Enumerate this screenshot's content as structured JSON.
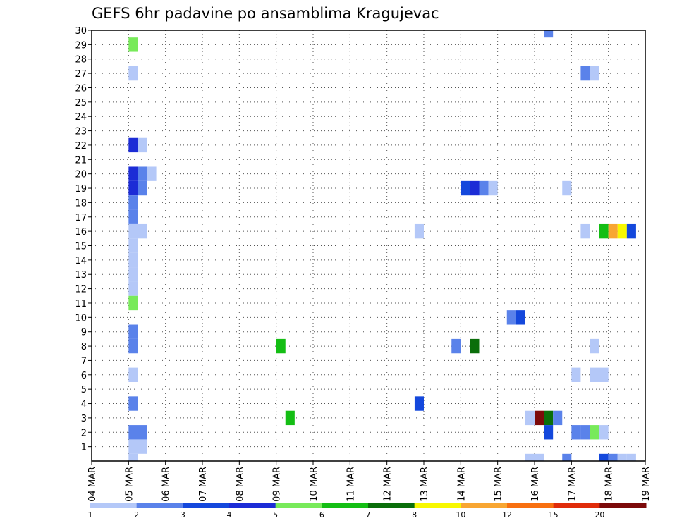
{
  "chart_data": {
    "type": "heatmap",
    "title": "GEFS 6hr padavine po ansamblima Kragujevac",
    "x_labels": [
      "04 MAR",
      "05 MAR",
      "06 MAR",
      "07 MAR",
      "08 MAR",
      "09 MAR",
      "10 MAR",
      "11 MAR",
      "12 MAR",
      "13 MAR",
      "14 MAR",
      "15 MAR",
      "16 MAR",
      "17 MAR",
      "18 MAR",
      "19 MAR"
    ],
    "x_unit": "6-hour steps from 04 MAR 00Z",
    "xlim": [
      0,
      60
    ],
    "y_labels": [
      "1",
      "2",
      "3",
      "4",
      "5",
      "6",
      "7",
      "8",
      "9",
      "10",
      "11",
      "12",
      "13",
      "14",
      "15",
      "16",
      "17",
      "18",
      "19",
      "20",
      "21",
      "22",
      "23",
      "24",
      "25",
      "26",
      "27",
      "28",
      "29",
      "30"
    ],
    "ylim": [
      0,
      30
    ],
    "legend": {
      "labels": [
        "1",
        "2",
        "3",
        "4",
        "5",
        "6",
        "7",
        "8",
        "10",
        "12",
        "15",
        "20"
      ],
      "colors": [
        "#b4c8f8",
        "#5a82ea",
        "#1448dc",
        "#1c2cd6",
        "#78ea5a",
        "#14be14",
        "#0a6e0a",
        "#f8f800",
        "#f8a632",
        "#f87010",
        "#e02c0a",
        "#7c0a0a"
      ]
    },
    "cells": [
      {
        "x": 4,
        "y": 29,
        "v": 5
      },
      {
        "x": 49,
        "y": 30,
        "v": 2
      },
      {
        "x": 4,
        "y": 27,
        "v": 1
      },
      {
        "x": 53,
        "y": 27,
        "v": 2
      },
      {
        "x": 54,
        "y": 27,
        "v": 1
      },
      {
        "x": 4,
        "y": 22,
        "v": 4
      },
      {
        "x": 5,
        "y": 22,
        "v": 1
      },
      {
        "x": 4,
        "y": 20,
        "v": 4
      },
      {
        "x": 5,
        "y": 20,
        "v": 2
      },
      {
        "x": 6,
        "y": 20,
        "v": 1
      },
      {
        "x": 4,
        "y": 19,
        "v": 4
      },
      {
        "x": 5,
        "y": 19,
        "v": 2
      },
      {
        "x": 40,
        "y": 19,
        "v": 3
      },
      {
        "x": 41,
        "y": 19,
        "v": 4
      },
      {
        "x": 42,
        "y": 19,
        "v": 2
      },
      {
        "x": 43,
        "y": 19,
        "v": 1
      },
      {
        "x": 51,
        "y": 19,
        "v": 1
      },
      {
        "x": 4,
        "y": 18,
        "v": 2
      },
      {
        "x": 4,
        "y": 17,
        "v": 2
      },
      {
        "x": 4,
        "y": 16,
        "v": 1
      },
      {
        "x": 5,
        "y": 16,
        "v": 1
      },
      {
        "x": 35,
        "y": 16,
        "v": 1
      },
      {
        "x": 53,
        "y": 16,
        "v": 1
      },
      {
        "x": 55,
        "y": 16,
        "v": 6
      },
      {
        "x": 56,
        "y": 16,
        "v": 10
      },
      {
        "x": 57,
        "y": 16,
        "v": 8
      },
      {
        "x": 58,
        "y": 16,
        "v": 3
      },
      {
        "x": 4,
        "y": 15,
        "v": 1
      },
      {
        "x": 4,
        "y": 14,
        "v": 1
      },
      {
        "x": 4,
        "y": 13,
        "v": 1
      },
      {
        "x": 4,
        "y": 12,
        "v": 1
      },
      {
        "x": 4,
        "y": 11,
        "v": 5
      },
      {
        "x": 45,
        "y": 10,
        "v": 2
      },
      {
        "x": 46,
        "y": 10,
        "v": 3
      },
      {
        "x": 4,
        "y": 9,
        "v": 2
      },
      {
        "x": 4,
        "y": 8,
        "v": 2
      },
      {
        "x": 20,
        "y": 8,
        "v": 6
      },
      {
        "x": 39,
        "y": 8,
        "v": 2
      },
      {
        "x": 41,
        "y": 8,
        "v": 7
      },
      {
        "x": 54,
        "y": 8,
        "v": 1
      },
      {
        "x": 4,
        "y": 6,
        "v": 1
      },
      {
        "x": 52,
        "y": 6,
        "v": 1
      },
      {
        "x": 54,
        "y": 6,
        "v": 1
      },
      {
        "x": 55,
        "y": 6,
        "v": 1
      },
      {
        "x": 4,
        "y": 4,
        "v": 2
      },
      {
        "x": 35,
        "y": 4,
        "v": 3
      },
      {
        "x": 21,
        "y": 3,
        "v": 6
      },
      {
        "x": 47,
        "y": 3,
        "v": 1
      },
      {
        "x": 48,
        "y": 3,
        "v": 20
      },
      {
        "x": 49,
        "y": 3,
        "v": 7
      },
      {
        "x": 50,
        "y": 3,
        "v": 2
      },
      {
        "x": 4,
        "y": 2,
        "v": 2
      },
      {
        "x": 5,
        "y": 2,
        "v": 2
      },
      {
        "x": 49,
        "y": 2,
        "v": 3
      },
      {
        "x": 52,
        "y": 2,
        "v": 2
      },
      {
        "x": 53,
        "y": 2,
        "v": 2
      },
      {
        "x": 54,
        "y": 2,
        "v": 5
      },
      {
        "x": 55,
        "y": 2,
        "v": 1
      },
      {
        "x": 4,
        "y": 1,
        "v": 1
      },
      {
        "x": 5,
        "y": 1,
        "v": 1
      },
      {
        "x": 4,
        "y": 0,
        "v": 1
      },
      {
        "x": 47,
        "y": 0,
        "v": 1
      },
      {
        "x": 48,
        "y": 0,
        "v": 1
      },
      {
        "x": 51,
        "y": 0,
        "v": 2
      },
      {
        "x": 55,
        "y": 0,
        "v": 3
      },
      {
        "x": 56,
        "y": 0,
        "v": 2
      },
      {
        "x": 57,
        "y": 0,
        "v": 1
      },
      {
        "x": 58,
        "y": 0,
        "v": 1
      }
    ]
  }
}
